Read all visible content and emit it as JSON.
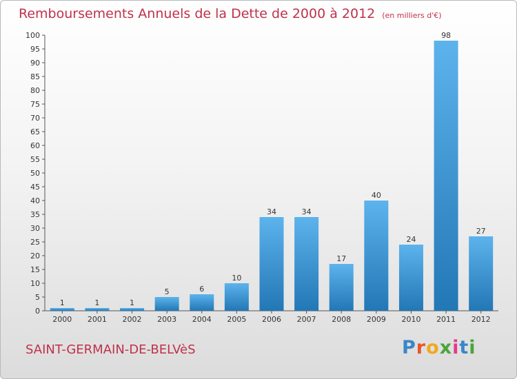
{
  "title": "Remboursements Annuels de la Dette de 2000 à 2012",
  "title_unit": "(en milliers d'€)",
  "footer": {
    "place": "SAINT-GERMAIN-DE-BELVèS"
  },
  "logo": {
    "letters": [
      "P",
      "r",
      "o",
      "x",
      "i",
      "t",
      "i"
    ],
    "colors": [
      "#3a86c8",
      "#e8552a",
      "#f2a81d",
      "#4aa53a",
      "#e5398a",
      "#3a86c8",
      "#4aa53a"
    ]
  },
  "colors": {
    "bar_light": "#5db3ec",
    "bar_dark": "#2277b5",
    "title": "#c0314a"
  },
  "chart_data": {
    "type": "bar",
    "categories": [
      "2000",
      "2001",
      "2002",
      "2003",
      "2004",
      "2005",
      "2006",
      "2007",
      "2008",
      "2009",
      "2010",
      "2011",
      "2012"
    ],
    "values": [
      1,
      1,
      1,
      5,
      6,
      10,
      34,
      34,
      17,
      40,
      24,
      98,
      27
    ],
    "data_labels": [
      "1",
      "1",
      "1",
      "5",
      "6",
      "10",
      "34",
      "34",
      "17",
      "40",
      "24",
      "98",
      "27"
    ],
    "ylim": [
      0,
      100
    ],
    "yticks": [
      0,
      5,
      10,
      15,
      20,
      25,
      30,
      35,
      40,
      45,
      50,
      55,
      60,
      65,
      70,
      75,
      80,
      85,
      90,
      95,
      100
    ],
    "grid": false
  }
}
